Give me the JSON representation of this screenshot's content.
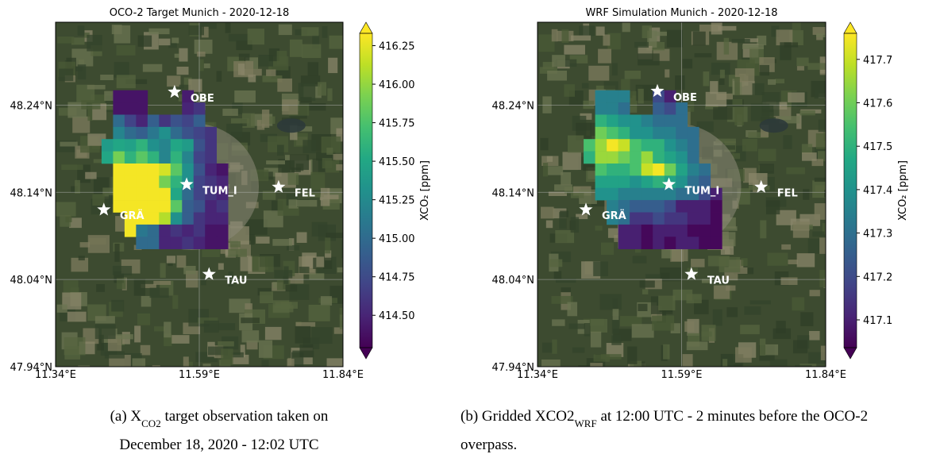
{
  "chart_data": [
    {
      "type": "heatmap",
      "title": "OCO-2 Target Munich - 2020-12-18",
      "xlim": [
        11.34,
        11.84
      ],
      "ylim": [
        47.94,
        48.335
      ],
      "xticks": [
        {
          "value": 11.34,
          "label": "11.34°E"
        },
        {
          "value": 11.59,
          "label": "11.59°E"
        },
        {
          "value": 11.84,
          "label": "11.84°E"
        }
      ],
      "yticks": [
        {
          "value": 47.94,
          "label": "47.94°N"
        },
        {
          "value": 48.04,
          "label": "48.04°N"
        },
        {
          "value": 48.14,
          "label": "48.14°N"
        },
        {
          "value": 48.24,
          "label": "48.24°N"
        }
      ],
      "x": [
        11.43,
        11.45,
        11.47,
        11.49,
        11.51,
        11.53,
        11.55,
        11.57,
        11.59,
        11.61,
        11.63,
        11.65
      ],
      "y": [
        48.25,
        48.236,
        48.222,
        48.208,
        48.194,
        48.18,
        48.166,
        48.152,
        48.138,
        48.124,
        48.11,
        48.096,
        48.082
      ],
      "values": [
        [
          null,
          414.4,
          414.4,
          414.4,
          null,
          null,
          null,
          414.45,
          null,
          null,
          null,
          null
        ],
        [
          null,
          414.4,
          414.4,
          414.4,
          null,
          null,
          null,
          414.5,
          414.6,
          null,
          null,
          null
        ],
        [
          null,
          415.0,
          414.7,
          414.5,
          414.9,
          414.6,
          414.8,
          414.7,
          414.9,
          null,
          null,
          null
        ],
        [
          null,
          415.2,
          415.0,
          414.9,
          415.1,
          415.3,
          415.0,
          414.8,
          414.7,
          414.6,
          null,
          null
        ],
        [
          415.4,
          415.5,
          415.45,
          415.6,
          415.3,
          415.2,
          415.5,
          415.4,
          414.8,
          414.6,
          null,
          null
        ],
        [
          415.5,
          415.9,
          415.6,
          415.8,
          415.6,
          415.2,
          415.6,
          415.2,
          414.7,
          414.6,
          null,
          null
        ],
        [
          null,
          416.3,
          416.3,
          416.3,
          416.3,
          416.2,
          415.8,
          415.3,
          414.8,
          414.5,
          414.4,
          null
        ],
        [
          null,
          416.3,
          416.3,
          416.3,
          416.3,
          415.9,
          415.6,
          415.3,
          414.7,
          414.6,
          414.5,
          null
        ],
        [
          null,
          416.3,
          416.3,
          416.3,
          416.3,
          416.3,
          415.5,
          415.0,
          414.7,
          414.6,
          414.5,
          null
        ],
        [
          null,
          416.3,
          416.3,
          416.3,
          416.3,
          416.3,
          415.8,
          414.9,
          414.8,
          414.5,
          414.6,
          null
        ],
        [
          null,
          null,
          416.3,
          416.3,
          416.3,
          416.1,
          415.3,
          414.9,
          414.6,
          414.5,
          414.5,
          null
        ],
        [
          null,
          null,
          416.3,
          415.1,
          415.0,
          414.5,
          414.6,
          414.5,
          414.6,
          414.4,
          414.4,
          null
        ],
        [
          null,
          null,
          null,
          415.0,
          415.0,
          414.5,
          414.5,
          414.6,
          414.5,
          414.4,
          414.4,
          null
        ]
      ],
      "colormap": "viridis",
      "clim": [
        414.29,
        416.33
      ],
      "cticks": [
        {
          "value": 414.5,
          "label": "414.50"
        },
        414.75,
        {
          "value": 415.0,
          "label": "415.00"
        },
        415.25,
        {
          "value": 415.5,
          "label": "415.50"
        },
        415.75,
        {
          "value": 416.0,
          "label": "416.00"
        },
        416.25
      ],
      "colorbar_label": "XCO₂ [ppm]",
      "stations": [
        {
          "name": "OBE",
          "lon": 11.547,
          "lat": 48.255
        },
        {
          "name": "TUM_I",
          "lon": 11.568,
          "lat": 48.149
        },
        {
          "name": "GRÄ",
          "lon": 11.424,
          "lat": 48.12
        },
        {
          "name": "FEL",
          "lon": 11.728,
          "lat": 48.146
        },
        {
          "name": "TAU",
          "lon": 11.607,
          "lat": 48.046
        }
      ],
      "caption": [
        [
          {
            "text": "(a) X"
          },
          {
            "text": "CO2",
            "sub": true
          },
          {
            "text": " target observation taken on"
          }
        ],
        [
          {
            "text": "December 18, 2020 - 12:02 UTC"
          }
        ]
      ]
    },
    {
      "type": "heatmap",
      "title": "WRF Simulation Munich - 2020-12-18",
      "xlim": [
        11.34,
        11.84
      ],
      "ylim": [
        47.94,
        48.335
      ],
      "xticks": [
        {
          "value": 11.34,
          "label": "11.34°E"
        },
        {
          "value": 11.59,
          "label": "11.59°E"
        },
        {
          "value": 11.84,
          "label": "11.84°E"
        }
      ],
      "yticks": [
        {
          "value": 47.94,
          "label": "47.94°N"
        },
        {
          "value": 48.04,
          "label": "48.04°N"
        },
        {
          "value": 48.14,
          "label": "48.14°N"
        },
        {
          "value": 48.24,
          "label": "48.24°N"
        }
      ],
      "x": [
        11.43,
        11.45,
        11.47,
        11.49,
        11.51,
        11.53,
        11.55,
        11.57,
        11.59,
        11.61,
        11.63,
        11.65
      ],
      "y": [
        48.25,
        48.236,
        48.222,
        48.208,
        48.194,
        48.18,
        48.166,
        48.152,
        48.138,
        48.124,
        48.11,
        48.096,
        48.082
      ],
      "values": [
        [
          null,
          417.35,
          417.35,
          417.35,
          null,
          null,
          417.2,
          417.1,
          null,
          null,
          null,
          null
        ],
        [
          null,
          417.35,
          417.35,
          417.3,
          null,
          null,
          417.25,
          417.2,
          417.3,
          null,
          null,
          null
        ],
        [
          null,
          417.5,
          417.45,
          417.4,
          417.4,
          417.35,
          417.3,
          417.3,
          417.3,
          null,
          null,
          null
        ],
        [
          null,
          417.6,
          417.55,
          417.5,
          417.4,
          417.4,
          417.35,
          417.35,
          417.3,
          417.3,
          null,
          null
        ],
        [
          417.55,
          417.65,
          417.75,
          417.7,
          417.55,
          417.5,
          417.5,
          417.4,
          417.35,
          417.3,
          null,
          null
        ],
        [
          417.5,
          417.65,
          417.65,
          417.6,
          417.55,
          417.65,
          417.5,
          417.45,
          417.4,
          417.3,
          null,
          null
        ],
        [
          null,
          417.55,
          417.5,
          417.5,
          417.55,
          417.7,
          417.75,
          417.6,
          417.45,
          417.35,
          417.3,
          null
        ],
        [
          null,
          417.45,
          417.45,
          417.45,
          417.4,
          417.45,
          417.5,
          417.45,
          417.4,
          417.3,
          417.25,
          null
        ],
        [
          null,
          417.4,
          417.4,
          417.35,
          417.35,
          417.35,
          417.35,
          417.35,
          417.3,
          417.3,
          417.2,
          417.1
        ],
        [
          null,
          null,
          417.35,
          417.3,
          417.25,
          417.25,
          417.25,
          417.2,
          417.1,
          417.1,
          417.1,
          417.05
        ],
        [
          null,
          null,
          417.35,
          417.3,
          417.15,
          417.15,
          417.2,
          417.15,
          417.15,
          417.1,
          417.1,
          417.05
        ],
        [
          null,
          null,
          null,
          417.1,
          417.1,
          417.05,
          417.1,
          417.1,
          417.1,
          417.05,
          417.05,
          417.05
        ],
        [
          null,
          null,
          null,
          417.1,
          417.1,
          417.05,
          417.1,
          417.05,
          417.1,
          417.1,
          417.05,
          417.05
        ]
      ],
      "colormap": "viridis",
      "clim": [
        417.036,
        417.76
      ],
      "cticks": [
        417.1,
        417.2,
        417.3,
        417.4,
        417.5,
        417.6,
        417.7
      ],
      "colorbar_label": "XCO₂ [ppm]",
      "stations": [
        {
          "name": "OBE",
          "lon": 11.548,
          "lat": 48.256
        },
        {
          "name": "TUM_I",
          "lon": 11.568,
          "lat": 48.149
        },
        {
          "name": "GRÄ",
          "lon": 11.424,
          "lat": 48.12
        },
        {
          "name": "FEL",
          "lon": 11.728,
          "lat": 48.146
        },
        {
          "name": "TAU",
          "lon": 11.607,
          "lat": 48.046
        }
      ],
      "caption": [
        [
          {
            "text": "(b) Gridded XCO2"
          },
          {
            "text": "WRF",
            "sub": true
          },
          {
            "text": " at 12:00 UTC - 2 minutes before the OCO-2"
          }
        ],
        [
          {
            "text": "overpass."
          }
        ]
      ]
    }
  ]
}
